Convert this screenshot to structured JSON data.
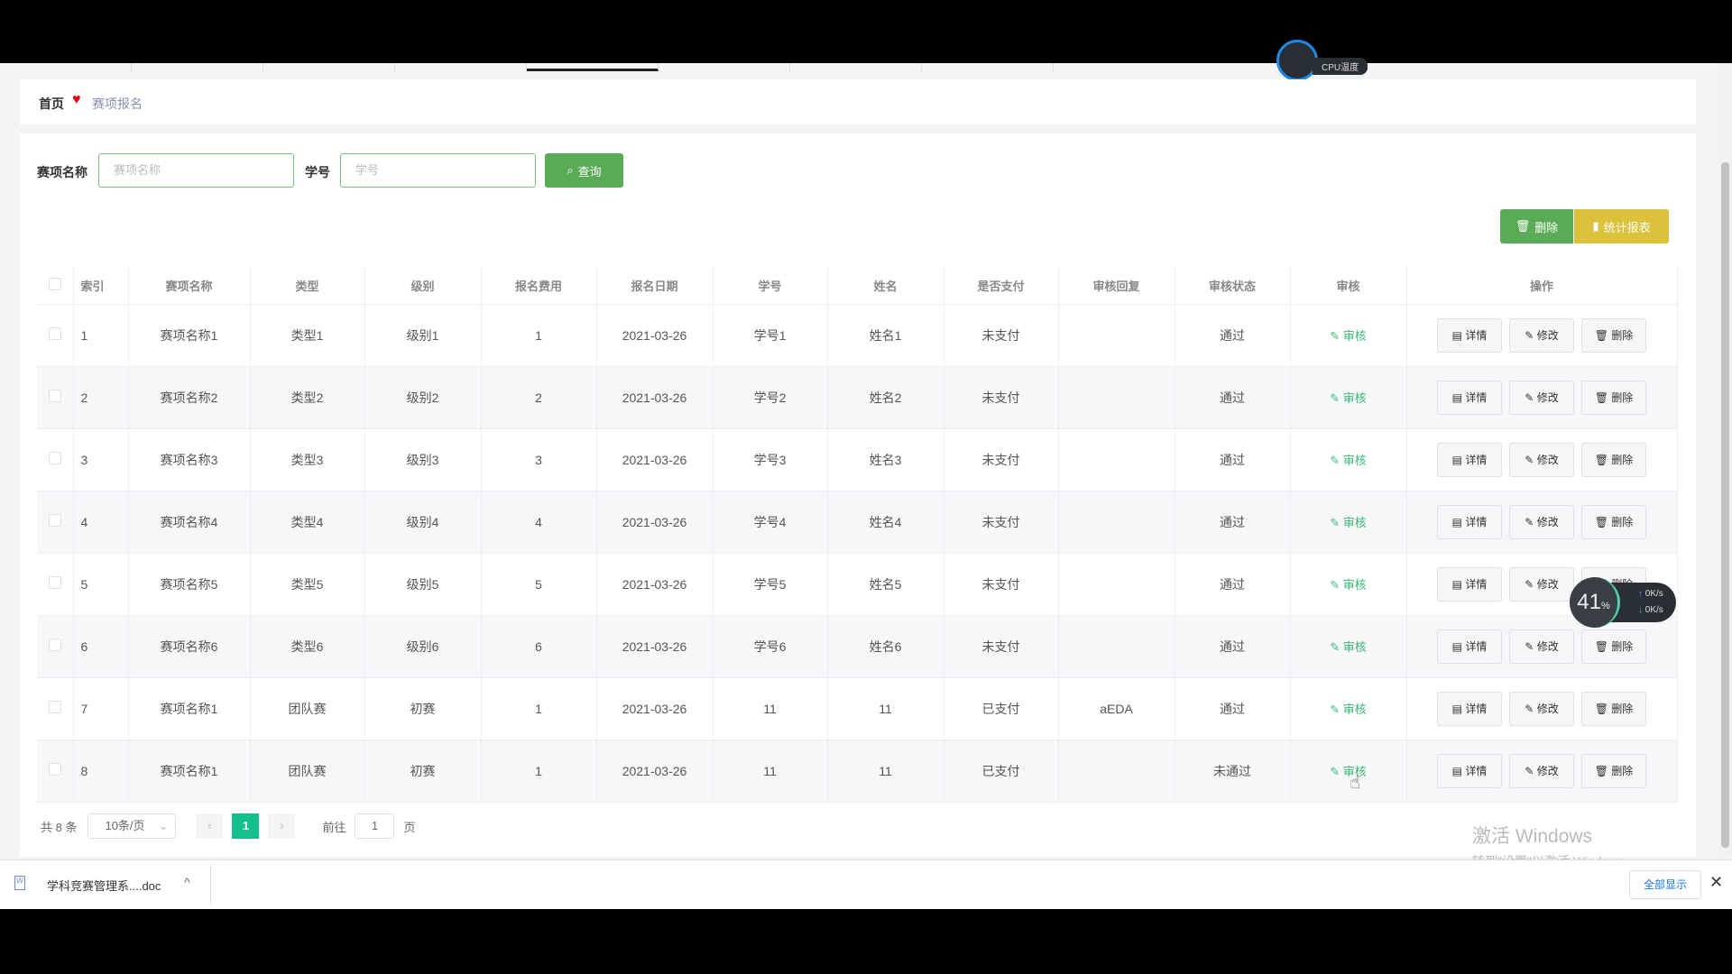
{
  "breadcrumb": {
    "home": "首页",
    "current": "赛项报名"
  },
  "search": {
    "name_label": "赛项名称",
    "name_placeholder": "赛项名称",
    "id_label": "学号",
    "id_placeholder": "学号",
    "query_button": "查询"
  },
  "toolbar": {
    "delete": "删除",
    "report": "统计报表"
  },
  "table": {
    "headers": [
      "索引",
      "赛项名称",
      "类型",
      "级别",
      "报名费用",
      "报名日期",
      "学号",
      "姓名",
      "是否支付",
      "审核回复",
      "审核状态",
      "审核",
      "操作"
    ],
    "audit_label": "审核",
    "actions": [
      "详情",
      "修改",
      "删除"
    ],
    "rows": [
      [
        "1",
        "赛项名称1",
        "类型1",
        "级别1",
        "1",
        "2021-03-26",
        "学号1",
        "姓名1",
        "未支付",
        "",
        "通过"
      ],
      [
        "2",
        "赛项名称2",
        "类型2",
        "级别2",
        "2",
        "2021-03-26",
        "学号2",
        "姓名2",
        "未支付",
        "",
        "通过"
      ],
      [
        "3",
        "赛项名称3",
        "类型3",
        "级别3",
        "3",
        "2021-03-26",
        "学号3",
        "姓名3",
        "未支付",
        "",
        "通过"
      ],
      [
        "4",
        "赛项名称4",
        "类型4",
        "级别4",
        "4",
        "2021-03-26",
        "学号4",
        "姓名4",
        "未支付",
        "",
        "通过"
      ],
      [
        "5",
        "赛项名称5",
        "类型5",
        "级别5",
        "5",
        "2021-03-26",
        "学号5",
        "姓名5",
        "未支付",
        "",
        "通过"
      ],
      [
        "6",
        "赛项名称6",
        "类型6",
        "级别6",
        "6",
        "2021-03-26",
        "学号6",
        "姓名6",
        "未支付",
        "",
        "通过"
      ],
      [
        "7",
        "赛项名称1",
        "团队赛",
        "初赛",
        "1",
        "2021-03-26",
        "11",
        "11",
        "已支付",
        "aEDA",
        "通过"
      ],
      [
        "8",
        "赛项名称1",
        "团队赛",
        "初赛",
        "1",
        "2021-03-26",
        "11",
        "11",
        "已支付",
        "",
        "未通过"
      ]
    ]
  },
  "pagination": {
    "total": "共 8 条",
    "page_size": "10条/页",
    "current": "1",
    "goto_label": "前往",
    "goto_value": "1",
    "page_suffix": "页"
  },
  "overlays": {
    "cpu_label": "CPU温度",
    "net_percent": "41",
    "net_percent_unit": "%",
    "upload": "0K/s",
    "download": "0K/s",
    "watermark_title": "激活 Windows",
    "watermark_sub": "转到\"设置\"以激活 Windows。"
  },
  "downloads": {
    "file": "学科竞赛管理系....doc",
    "show_all": "全部显示"
  },
  "colors": {
    "primary_green": "#5aab55",
    "report_yellow": "#dcc13a",
    "page_active": "#13c08a",
    "audit_green": "#3cb878"
  }
}
